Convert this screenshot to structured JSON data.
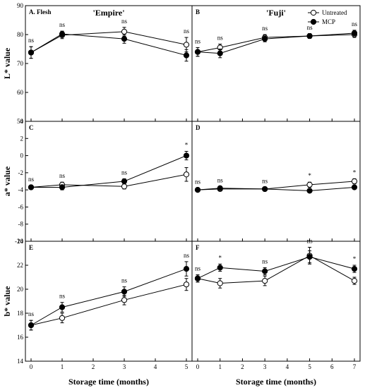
{
  "figure": {
    "x_axis_label": "Storage time (months)",
    "legend": [
      {
        "name": "Untreated",
        "marker": "open-circle"
      },
      {
        "name": "MCP",
        "marker": "filled-circle"
      }
    ],
    "column_titles": [
      "'Empire'",
      "'Fuji'"
    ]
  },
  "chart_data": [
    {
      "type": "line",
      "panel": "A. Flesh",
      "cultivar": "'Empire'",
      "ylabel": "L* value",
      "xlim": [
        0,
        5
      ],
      "ylim": [
        50,
        90
      ],
      "xticks": [
        0,
        1,
        2,
        3,
        4,
        5
      ],
      "yticks": [
        50,
        60,
        70,
        80,
        90
      ],
      "x": [
        0,
        1,
        3,
        5
      ],
      "series": [
        {
          "name": "Untreated",
          "values": [
            73.8,
            79.8,
            81.0,
            76.5
          ],
          "errors": [
            2.0,
            1.2,
            1.5,
            2.5
          ]
        },
        {
          "name": "MCP",
          "values": [
            73.8,
            80.2,
            78.5,
            72.8
          ],
          "errors": [
            2.0,
            1.0,
            1.5,
            2.0
          ]
        }
      ],
      "significance": [
        "ns",
        "ns",
        "ns",
        "ns"
      ]
    },
    {
      "type": "line",
      "panel": "B",
      "cultivar": "'Fuji'",
      "ylabel": "",
      "xlim": [
        0,
        7
      ],
      "ylim": [
        50,
        90
      ],
      "xticks": [
        0,
        1,
        2,
        3,
        4,
        5,
        6,
        7
      ],
      "yticks": [
        50,
        60,
        70,
        80,
        90
      ],
      "x": [
        0,
        1,
        3,
        5,
        7
      ],
      "series": [
        {
          "name": "Untreated",
          "values": [
            74.0,
            75.5,
            79.0,
            79.5,
            80.0
          ],
          "errors": [
            1.5,
            1.2,
            1.0,
            0.8,
            1.0
          ]
        },
        {
          "name": "MCP",
          "values": [
            74.0,
            73.5,
            78.5,
            79.5,
            80.5
          ],
          "errors": [
            1.5,
            1.5,
            1.0,
            0.8,
            1.0
          ]
        }
      ],
      "significance": [
        "ns",
        "ns",
        "ns",
        "ns",
        "ns"
      ]
    },
    {
      "type": "line",
      "panel": "C",
      "cultivar": "'Empire'",
      "ylabel": "a* value",
      "xlim": [
        0,
        5
      ],
      "ylim": [
        -10,
        4
      ],
      "xticks": [
        0,
        1,
        2,
        3,
        4,
        5
      ],
      "yticks": [
        -10,
        -8,
        -6,
        -4,
        -2,
        0,
        2,
        4
      ],
      "x": [
        0,
        1,
        3,
        5
      ],
      "series": [
        {
          "name": "Untreated",
          "values": [
            -3.7,
            -3.4,
            -3.6,
            -2.2
          ],
          "errors": [
            0.2,
            0.3,
            0.3,
            0.8
          ]
        },
        {
          "name": "MCP",
          "values": [
            -3.7,
            -3.7,
            -3.0,
            0.0
          ],
          "errors": [
            0.2,
            0.3,
            0.3,
            0.5
          ]
        }
      ],
      "significance": [
        "ns",
        "ns",
        "ns",
        "*"
      ]
    },
    {
      "type": "line",
      "panel": "D",
      "cultivar": "'Fuji'",
      "ylabel": "",
      "xlim": [
        0,
        7
      ],
      "ylim": [
        -10,
        4
      ],
      "xticks": [
        0,
        1,
        2,
        3,
        4,
        5,
        6,
        7
      ],
      "yticks": [
        -10,
        -8,
        -6,
        -4,
        -2,
        0,
        2,
        4
      ],
      "x": [
        0,
        1,
        3,
        5,
        7
      ],
      "series": [
        {
          "name": "Untreated",
          "values": [
            -4.0,
            -3.9,
            -3.9,
            -3.4,
            -3.0
          ],
          "errors": [
            0.2,
            0.2,
            0.2,
            0.3,
            0.3
          ]
        },
        {
          "name": "MCP",
          "values": [
            -4.0,
            -3.8,
            -3.9,
            -4.1,
            -3.7
          ],
          "errors": [
            0.2,
            0.2,
            0.2,
            0.2,
            0.2
          ]
        }
      ],
      "significance": [
        "ns",
        "ns",
        "ns",
        "*",
        "*"
      ]
    },
    {
      "type": "line",
      "panel": "E",
      "cultivar": "'Empire'",
      "ylabel": "b* value",
      "xlim": [
        0,
        5
      ],
      "ylim": [
        14,
        24
      ],
      "xticks": [
        0,
        1,
        2,
        3,
        4,
        5
      ],
      "yticks": [
        14,
        16,
        18,
        20,
        22,
        24
      ],
      "x": [
        0,
        1,
        3,
        5
      ],
      "series": [
        {
          "name": "Untreated",
          "values": [
            17.0,
            17.6,
            19.1,
            20.4
          ],
          "errors": [
            0.4,
            0.4,
            0.4,
            0.5
          ]
        },
        {
          "name": "MCP",
          "values": [
            17.0,
            18.5,
            19.8,
            21.7
          ],
          "errors": [
            0.4,
            0.4,
            0.4,
            0.6
          ]
        }
      ],
      "significance": [
        "ns",
        "ns",
        "ns",
        "ns"
      ]
    },
    {
      "type": "line",
      "panel": "F",
      "cultivar": "'Fuji'",
      "ylabel": "",
      "xlim": [
        0,
        7
      ],
      "ylim": [
        14,
        24
      ],
      "xticks": [
        0,
        1,
        2,
        3,
        4,
        5,
        6,
        7
      ],
      "yticks": [
        14,
        16,
        18,
        20,
        22,
        24
      ],
      "x": [
        0,
        1,
        3,
        5,
        7
      ],
      "series": [
        {
          "name": "Untreated",
          "values": [
            20.9,
            20.5,
            20.7,
            22.8,
            20.7
          ],
          "errors": [
            0.3,
            0.4,
            0.4,
            0.7,
            0.3
          ]
        },
        {
          "name": "MCP",
          "values": [
            20.9,
            21.8,
            21.5,
            22.7,
            21.7
          ],
          "errors": [
            0.3,
            0.3,
            0.3,
            0.5,
            0.3
          ]
        }
      ],
      "significance": [
        "ns",
        "*",
        "ns",
        "ns",
        "*"
      ]
    }
  ]
}
